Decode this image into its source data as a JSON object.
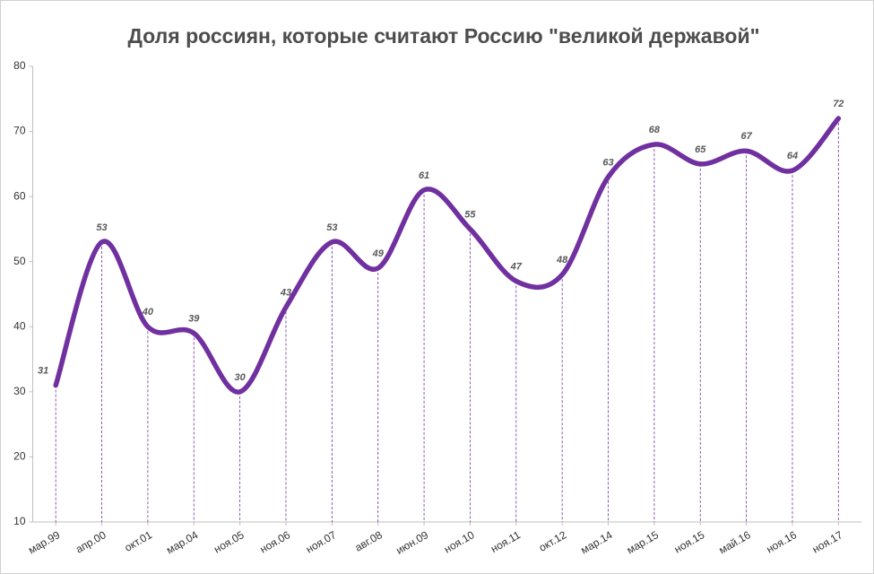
{
  "chart_data": {
    "type": "line",
    "title": "Доля россиян, которые считают Россию \"великой державой\"",
    "categories": [
      "мар.99",
      "апр.00",
      "окт.01",
      "мар.04",
      "ноя.05",
      "ноя.06",
      "ноя.07",
      "авг.08",
      "июн.09",
      "ноя.10",
      "ноя.11",
      "окт.12",
      "мар.14",
      "мар.15",
      "ноя.15",
      "май.16",
      "ноя.16",
      "ноя.17"
    ],
    "values": [
      31,
      53,
      40,
      39,
      30,
      43,
      53,
      49,
      61,
      55,
      47,
      48,
      63,
      68,
      65,
      67,
      64,
      72
    ],
    "color": "#7030a0",
    "ylim": [
      10,
      80
    ],
    "yticks": [
      10,
      20,
      30,
      40,
      50,
      60,
      70,
      80
    ],
    "grid": false,
    "smooth": true,
    "drop_lines": true,
    "data_labels": true
  }
}
